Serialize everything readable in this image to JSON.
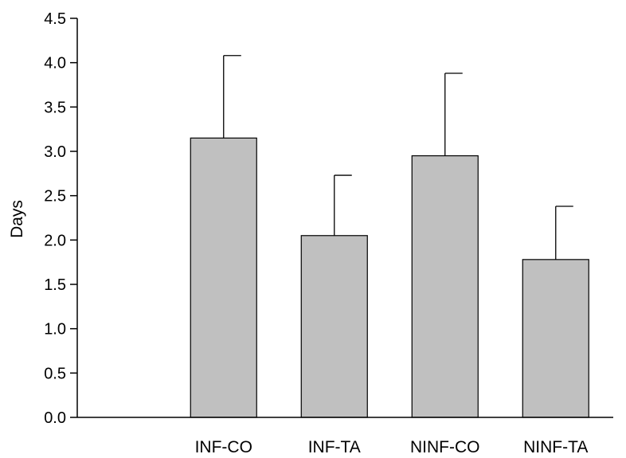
{
  "chart_data": {
    "type": "bar",
    "title": "",
    "xlabel": "",
    "ylabel": "Days",
    "categories": [
      "INF-CO",
      "INF-TA",
      "NINF-CO",
      "NINF-TA"
    ],
    "values": [
      3.15,
      2.05,
      2.95,
      1.78
    ],
    "error_upper": [
      0.93,
      0.68,
      0.93,
      0.6
    ],
    "ylim": [
      0,
      4.5
    ],
    "yticks": [
      "0.0",
      "0.5",
      "1.0",
      "1.5",
      "2.0",
      "2.5",
      "3.0",
      "3.5",
      "4.0",
      "4.5"
    ],
    "grid": false,
    "legend": "none",
    "bar_color": "#c0c0c0",
    "edge_color": "#000000"
  }
}
